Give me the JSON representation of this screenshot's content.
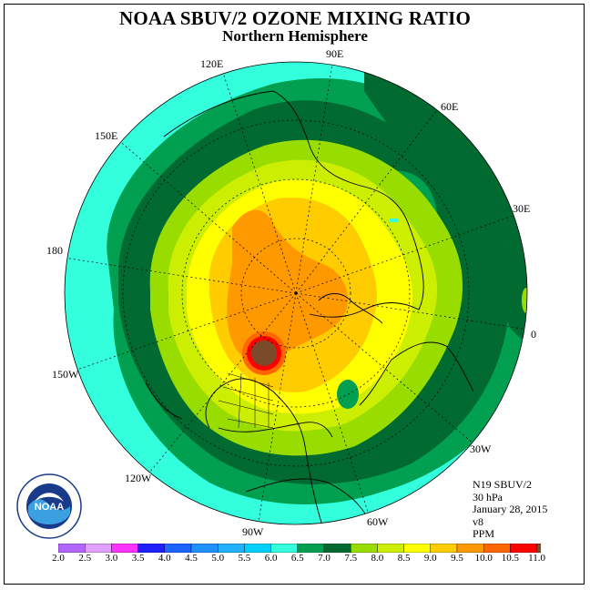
{
  "header": {
    "title": "NOAA SBUV/2 OZONE MIXING RATIO",
    "subtitle": "Northern Hemisphere"
  },
  "longitude_labels": [
    "90E",
    "120E",
    "60E",
    "150E",
    "30E",
    "180",
    "0",
    "150W",
    "30W",
    "120W",
    "60W",
    "90W"
  ],
  "info": {
    "instrument": "N19 SBUV/2",
    "pressure": "30 hPa",
    "date": "January 28, 2015",
    "version": "v8",
    "units": "PPM"
  },
  "logo": {
    "text": "NOAA",
    "icon": "noaa-logo-icon"
  },
  "colorbar": {
    "labels": [
      "2.0",
      "2.5",
      "3.0",
      "3.5",
      "4.0",
      "4.5",
      "5.0",
      "5.5",
      "6.0",
      "6.5",
      "7.0",
      "7.5",
      "8.0",
      "8.5",
      "9.0",
      "9.5",
      "10.0",
      "10.5",
      "11.0"
    ],
    "colors": [
      "#b366ff",
      "#e0a0ff",
      "#ff33ff",
      "#2020ff",
      "#1e64ff",
      "#1e90ff",
      "#22b0ff",
      "#00d0ff",
      "#33ffdd",
      "#00a050",
      "#006a30",
      "#99dd00",
      "#ccee00",
      "#ffff00",
      "#ffcc00",
      "#ff9900",
      "#ff6600",
      "#ff0000",
      "#7b4a2a"
    ]
  },
  "map_colors": {
    "aqua": "#33ffdd",
    "green": "#00a050",
    "dark_green": "#006a30",
    "lime": "#99dd00",
    "yellow_green": "#ccee00",
    "yellow": "#ffff00",
    "light_orange": "#ffcc00",
    "orange": "#ff9900",
    "dark_orange": "#ff6600",
    "red": "#ff0000",
    "brown": "#7b4a2a"
  }
}
